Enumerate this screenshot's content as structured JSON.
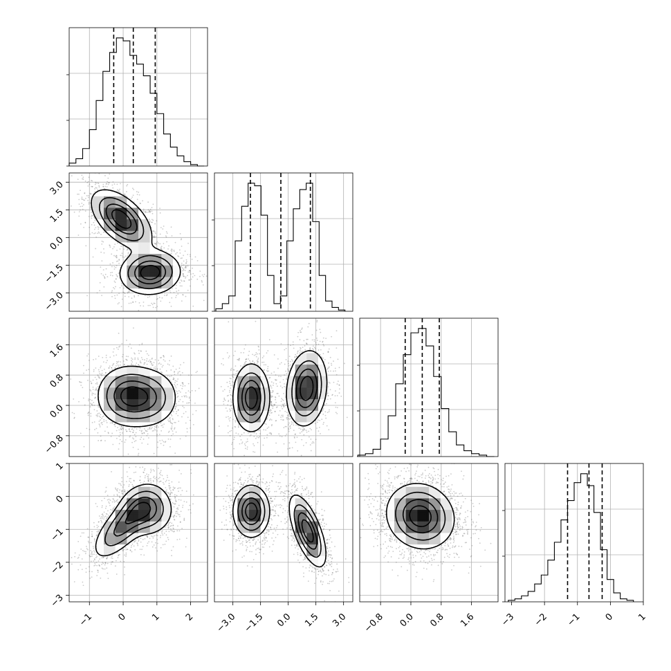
{
  "chart_data": {
    "type": "corner",
    "grid": true,
    "params": [
      {
        "range": [
          -1.6,
          2.5
        ],
        "ticks": [
          -1,
          0,
          1,
          2
        ],
        "tick_labels": [
          "−1",
          "0",
          "1",
          "2"
        ],
        "quantiles": [
          -0.28,
          0.3,
          0.95
        ],
        "hist_x": [
          -1.5,
          -1.3,
          -1.1,
          -0.9,
          -0.7,
          -0.5,
          -0.3,
          -0.1,
          0.1,
          0.3,
          0.5,
          0.7,
          0.9,
          1.1,
          1.3,
          1.5,
          1.7,
          1.9,
          2.1,
          2.3
        ],
        "hist_y": [
          2,
          5,
          12,
          25,
          45,
          65,
          78,
          88,
          86,
          76,
          70,
          62,
          50,
          36,
          22,
          13,
          7,
          3,
          1,
          0
        ]
      },
      {
        "range": [
          -4.0,
          3.5
        ],
        "ticks": [
          -3.0,
          -1.5,
          0.0,
          1.5,
          3.0
        ],
        "tick_labels": [
          "−3.0",
          "−1.5",
          "0.0",
          "1.5",
          "3.0"
        ],
        "quantiles": [
          -2.05,
          -0.4,
          1.2
        ],
        "hist_x": [
          -3.75,
          -3.4,
          -3.05,
          -2.7,
          -2.35,
          -2.0,
          -1.65,
          -1.3,
          -0.95,
          -0.6,
          -0.25,
          0.1,
          0.45,
          0.8,
          1.15,
          1.5,
          1.85,
          2.2,
          2.55,
          2.9
        ],
        "hist_y": [
          2,
          6,
          12,
          55,
          82,
          100,
          98,
          75,
          28,
          6,
          12,
          55,
          80,
          95,
          100,
          70,
          28,
          8,
          3,
          1
        ]
      },
      {
        "range": [
          -1.35,
          2.3
        ],
        "ticks": [
          -0.8,
          0.0,
          0.8,
          1.6
        ],
        "tick_labels": [
          "−0.8",
          "0.0",
          "0.8",
          "1.6"
        ],
        "quantiles": [
          -0.15,
          0.3,
          0.75
        ],
        "hist_x": [
          -1.3,
          -1.1,
          -0.9,
          -0.7,
          -0.5,
          -0.3,
          -0.1,
          0.1,
          0.3,
          0.5,
          0.7,
          0.9,
          1.1,
          1.3,
          1.5,
          1.7,
          1.9,
          2.1
        ],
        "hist_y": [
          1,
          2,
          5,
          12,
          28,
          50,
          70,
          85,
          88,
          76,
          55,
          33,
          17,
          8,
          4,
          2,
          1,
          0
        ]
      },
      {
        "range": [
          -3.2,
          1.0
        ],
        "ticks": [
          -3,
          -2,
          -1,
          0,
          1
        ],
        "tick_labels": [
          "−3",
          "−2",
          "−1",
          "0",
          "1"
        ],
        "quantiles": [
          -1.3,
          -0.65,
          -0.25
        ],
        "hist_x": [
          -3.0,
          -2.8,
          -2.6,
          -2.4,
          -2.2,
          -2.0,
          -1.8,
          -1.6,
          -1.4,
          -1.2,
          -1.0,
          -0.8,
          -0.6,
          -0.4,
          -0.2,
          0.0,
          0.2,
          0.4,
          0.6
        ],
        "hist_y": [
          1,
          2,
          4,
          7,
          12,
          18,
          28,
          40,
          55,
          68,
          80,
          86,
          78,
          60,
          35,
          15,
          6,
          2,
          1
        ]
      }
    ],
    "modes": [
      [
        {
          "x": -0.05,
          "y": 1.0,
          "sx": 0.45,
          "sy": 0.8,
          "rho": -0.55,
          "w": 0.5
        },
        {
          "x": 0.8,
          "y": -1.9,
          "sx": 0.45,
          "sy": 0.6,
          "rho": 0.05,
          "w": 0.5
        }
      ],
      [
        {
          "x": 0.1,
          "y": 0.25,
          "sx": 0.45,
          "sy": 0.4,
          "rho": 0.0,
          "w": 0.6
        },
        {
          "x": 0.8,
          "y": 0.2,
          "sx": 0.45,
          "sy": 0.4,
          "rho": 0.0,
          "w": 0.4
        }
      ],
      [
        {
          "x": 0.0,
          "y": -0.9,
          "sx": 0.45,
          "sy": 0.5,
          "rho": 0.7,
          "w": 0.5
        },
        {
          "x": 0.7,
          "y": -0.4,
          "sx": 0.4,
          "sy": 0.4,
          "rho": 0.0,
          "w": 0.5
        }
      ],
      [
        {
          "x": -2.0,
          "y": 0.2,
          "sx": 0.5,
          "sy": 0.45,
          "rho": 0.0,
          "w": 0.5
        },
        {
          "x": 1.0,
          "y": 0.45,
          "sx": 0.55,
          "sy": 0.5,
          "rho": 0.15,
          "w": 0.5
        }
      ],
      [
        {
          "x": -2.0,
          "y": -0.45,
          "sx": 0.5,
          "sy": 0.4,
          "rho": 0.0,
          "w": 0.5
        },
        {
          "x": 1.05,
          "y": -1.05,
          "sx": 0.5,
          "sy": 0.55,
          "rho": -0.65,
          "w": 0.5
        }
      ],
      [
        {
          "x": 0.25,
          "y": -0.6,
          "sx": 0.45,
          "sy": 0.5,
          "rho": -0.1,
          "w": 1.0
        }
      ]
    ],
    "pairs": [
      [
        0,
        1
      ],
      [
        0,
        2
      ],
      [
        0,
        3
      ],
      [
        1,
        2
      ],
      [
        1,
        3
      ],
      [
        2,
        3
      ]
    ]
  }
}
